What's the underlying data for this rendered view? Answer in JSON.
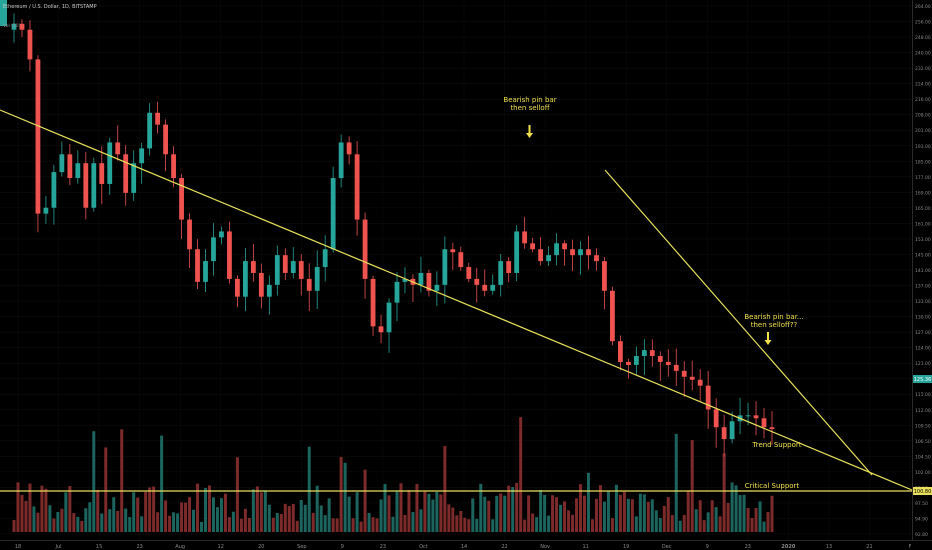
{
  "header": {
    "symbol": "Ethereum / U.S. Dollar, 1D, BITSTAMP",
    "indicator": "Vol (20)"
  },
  "chart_data": {
    "type": "candlestick",
    "colors": {
      "up": "#26a69a",
      "down": "#ef5350",
      "trendline": "#e8e05a",
      "annotation": "#f0e04a",
      "price_tag": "#26a69a",
      "support_tag": "#e8e05a"
    },
    "y_ticks": [
      "264.00",
      "256.00",
      "248.00",
      "240.00",
      "232.00",
      "224.00",
      "216.00",
      "208.00",
      "201.00",
      "193.00",
      "185.00",
      "177.00",
      "169.00",
      "165.00",
      "161.00",
      "153.00",
      "145.00",
      "141.00",
      "137.00",
      "133.00",
      "130.00",
      "127.00",
      "124.00",
      "121.00",
      "118.00",
      "115.00",
      "112.00",
      "109.50",
      "106.50",
      "104.50",
      "102.00",
      "99.50",
      "97.50",
      "94.90",
      "92.80"
    ],
    "x_ticks": [
      "18",
      "Jul",
      "15",
      "23",
      "Aug",
      "12",
      "20",
      "Sep",
      "9",
      "23",
      "Oct",
      "14",
      "22",
      "Nov",
      "11",
      "19",
      "Dec",
      "9",
      "23",
      "2020",
      "13",
      "21",
      "F"
    ],
    "last_price": "125.36",
    "critical_level": "100.80",
    "ylim": [
      90,
      268
    ],
    "series": [
      {
        "name": "price",
        "values": [
          262,
          260,
          250,
          198,
          200,
          212,
          218,
          210,
          215,
          200,
          215,
          208,
          222,
          218,
          205,
          215,
          220,
          232,
          228,
          218,
          210,
          196,
          186,
          175,
          182,
          190,
          192,
          176,
          170,
          182,
          178,
          170,
          174,
          184,
          178,
          182,
          176,
          172,
          180,
          186,
          210,
          222,
          218,
          196,
          176,
          160,
          158,
          168,
          175,
          176,
          174,
          178,
          172,
          174,
          186,
          185,
          180,
          176,
          174,
          172,
          174,
          182,
          178,
          192,
          188,
          186,
          182,
          184,
          188,
          186,
          184,
          186,
          184,
          182,
          172,
          155,
          148,
          147,
          150,
          152,
          150,
          148,
          147,
          145,
          143,
          142,
          140,
          132,
          126,
          122,
          128,
          130,
          130,
          129,
          126,
          125.36
        ]
      }
    ],
    "annotations": [
      {
        "text": [
          "Bearish pin bar",
          "then selloff"
        ]
      },
      {
        "text": [
          "Bearish pin bar...",
          "then selloff??"
        ]
      },
      {
        "text": [
          "Trend Support"
        ]
      },
      {
        "text": [
          "Critical Support"
        ]
      }
    ]
  }
}
